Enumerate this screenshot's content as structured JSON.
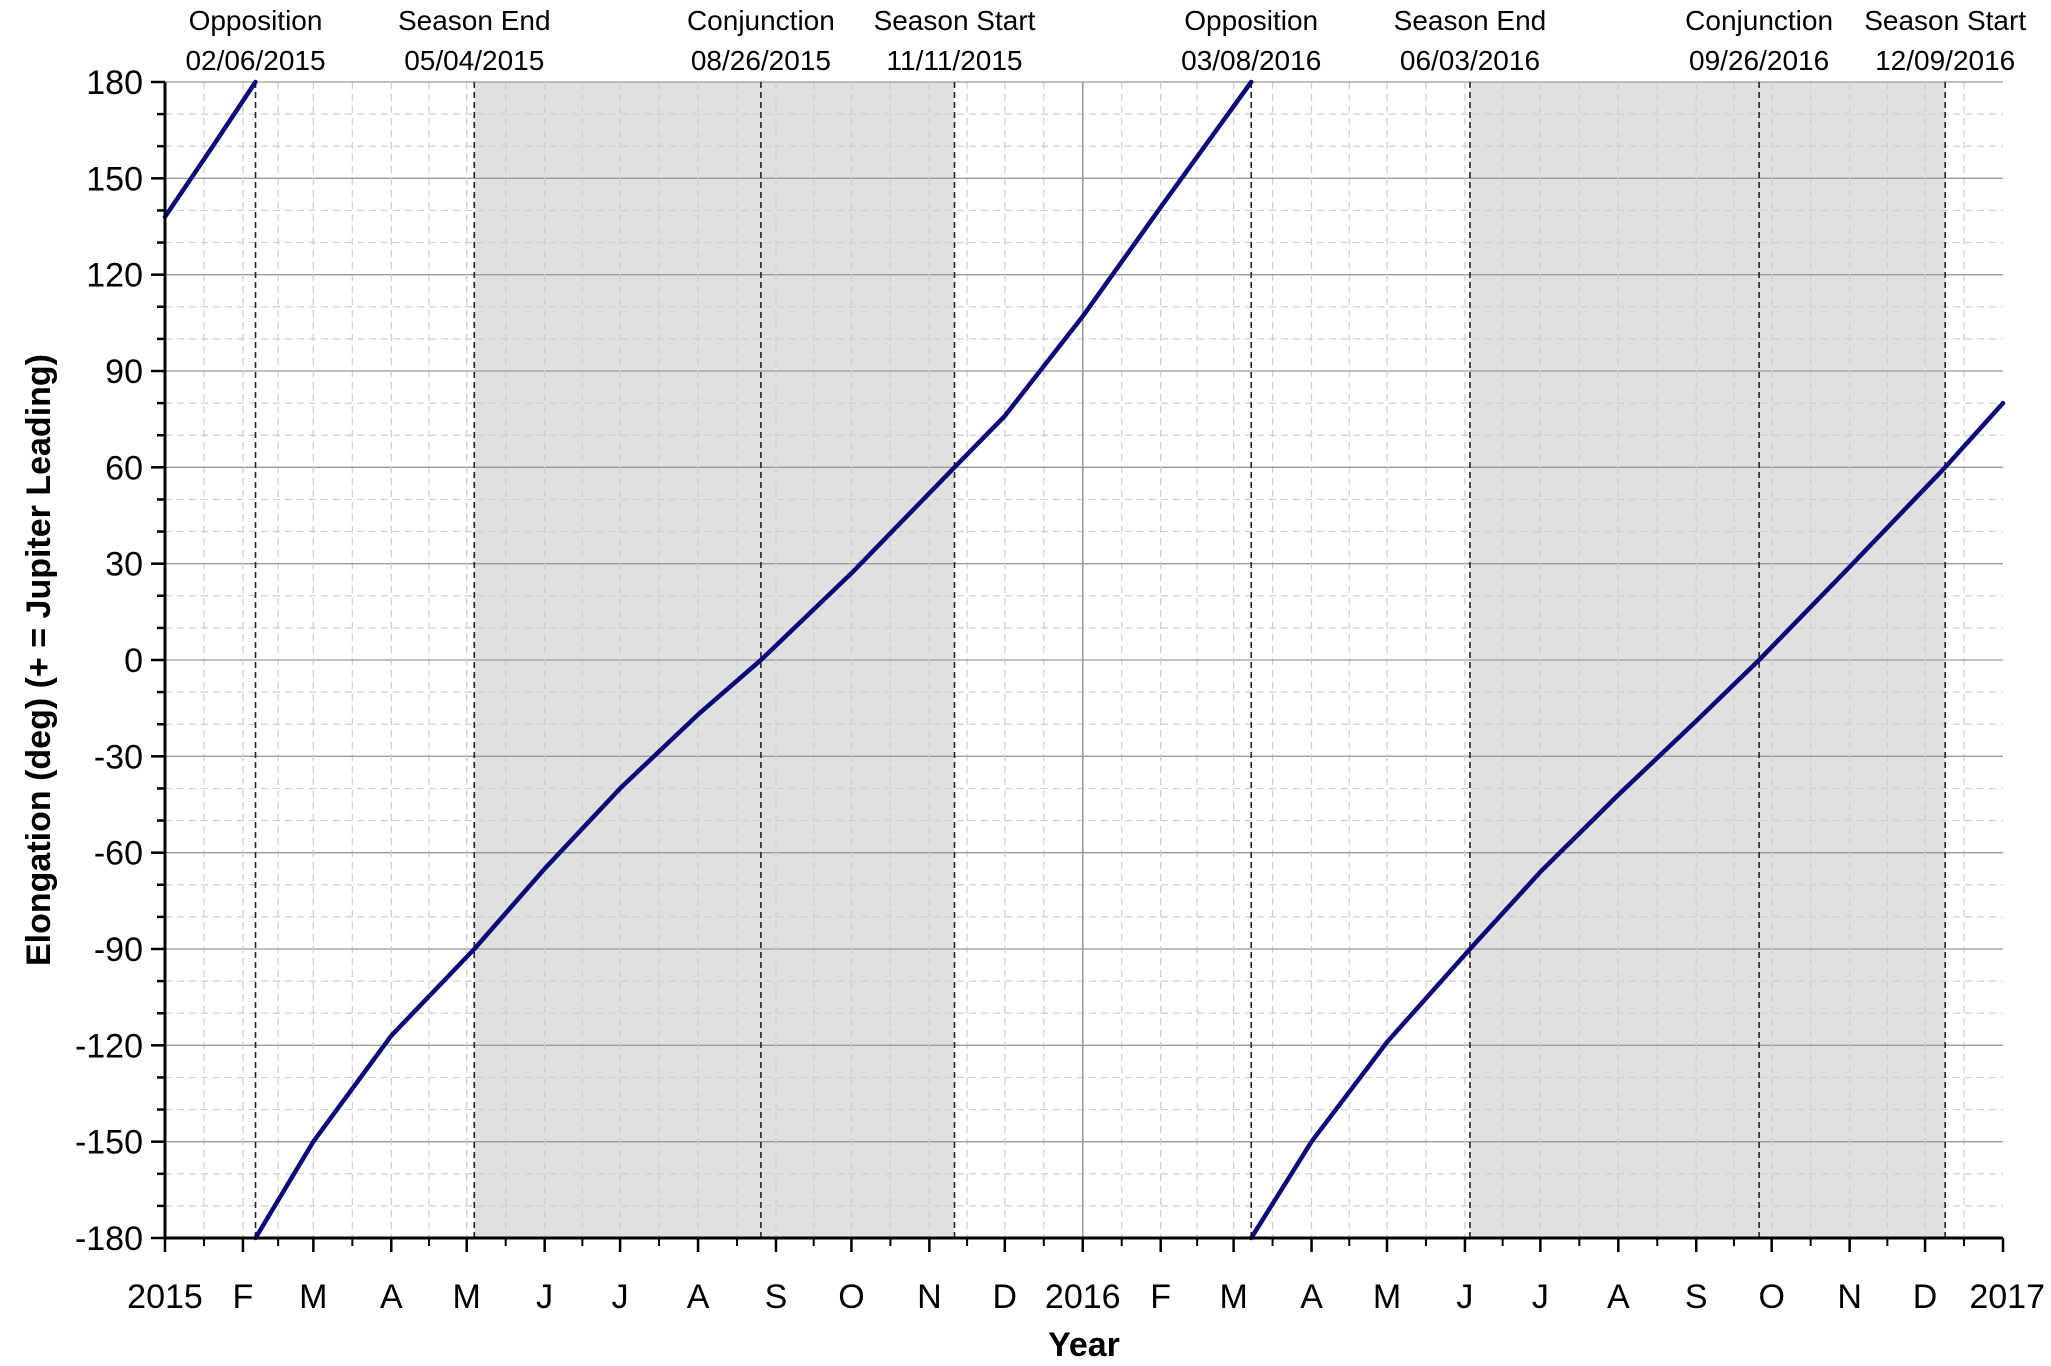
{
  "chart_data": {
    "type": "line",
    "title": "",
    "xlabel": "Year",
    "ylabel": "Elongation (deg) (+ = Jupiter Leading)",
    "xlim": [
      "2015-01-01",
      "2017-01-01"
    ],
    "ylim": [
      -180,
      180
    ],
    "y_ticks": [
      180,
      150,
      120,
      90,
      60,
      30,
      0,
      -30,
      -60,
      -90,
      -120,
      -150,
      -180
    ],
    "y_tick_labels": [
      "180",
      "150",
      "120",
      "90",
      "60",
      "30",
      "0",
      "-30",
      "-60",
      "-90",
      "-120",
      "-150",
      "-180"
    ],
    "x_ticks": [
      {
        "date": "2015-01-01",
        "label": "2015"
      },
      {
        "date": "2015-02-01",
        "label": "F"
      },
      {
        "date": "2015-03-01",
        "label": "M"
      },
      {
        "date": "2015-04-01",
        "label": "A"
      },
      {
        "date": "2015-05-01",
        "label": "M"
      },
      {
        "date": "2015-06-01",
        "label": "J"
      },
      {
        "date": "2015-07-01",
        "label": "J"
      },
      {
        "date": "2015-08-01",
        "label": "A"
      },
      {
        "date": "2015-09-01",
        "label": "S"
      },
      {
        "date": "2015-10-01",
        "label": "O"
      },
      {
        "date": "2015-11-01",
        "label": "N"
      },
      {
        "date": "2015-12-01",
        "label": "D"
      },
      {
        "date": "2016-01-01",
        "label": "2016"
      },
      {
        "date": "2016-02-01",
        "label": "F"
      },
      {
        "date": "2016-03-01",
        "label": "M"
      },
      {
        "date": "2016-04-01",
        "label": "A"
      },
      {
        "date": "2016-05-01",
        "label": "M"
      },
      {
        "date": "2016-06-01",
        "label": "J"
      },
      {
        "date": "2016-07-01",
        "label": "J"
      },
      {
        "date": "2016-08-01",
        "label": "A"
      },
      {
        "date": "2016-09-01",
        "label": "S"
      },
      {
        "date": "2016-10-01",
        "label": "O"
      },
      {
        "date": "2016-11-01",
        "label": "N"
      },
      {
        "date": "2016-12-01",
        "label": "D"
      },
      {
        "date": "2017-01-01",
        "label": "2017"
      }
    ],
    "grid": true,
    "legend": "none",
    "colors": {
      "line": "#0a0a78",
      "shade": "#e0e0e0",
      "grid_major": "#9a9a9a",
      "grid_minor": "#cfcfcf"
    },
    "shaded_spans": [
      {
        "start": "2015-05-04",
        "end": "2015-11-11"
      },
      {
        "start": "2016-06-03",
        "end": "2016-12-09"
      }
    ],
    "events": [
      {
        "name": "Opposition",
        "date_label": "02/06/2015",
        "date": "2015-02-06"
      },
      {
        "name": "Season End",
        "date_label": "05/04/2015",
        "date": "2015-05-04"
      },
      {
        "name": "Conjunction",
        "date_label": "08/26/2015",
        "date": "2015-08-26"
      },
      {
        "name": "Season Start",
        "date_label": "11/11/2015",
        "date": "2015-11-11"
      },
      {
        "name": "Opposition",
        "date_label": "03/08/2016",
        "date": "2016-03-08"
      },
      {
        "name": "Season End",
        "date_label": "06/03/2016",
        "date": "2016-06-03"
      },
      {
        "name": "Conjunction",
        "date_label": "09/26/2016",
        "date": "2016-09-26"
      },
      {
        "name": "Season Start",
        "date_label": "12/09/2016",
        "date": "2016-12-09"
      }
    ],
    "series": [
      {
        "points": [
          {
            "x": "2015-01-01",
            "y": 138
          },
          {
            "x": "2015-01-20",
            "y": 160
          },
          {
            "x": "2015-02-06",
            "y": 180
          }
        ]
      },
      {
        "points": [
          {
            "x": "2015-02-06",
            "y": -180
          },
          {
            "x": "2015-03-01",
            "y": -150
          },
          {
            "x": "2015-04-01",
            "y": -117
          },
          {
            "x": "2015-05-04",
            "y": -90
          },
          {
            "x": "2015-06-01",
            "y": -65
          },
          {
            "x": "2015-07-01",
            "y": -40
          },
          {
            "x": "2015-08-01",
            "y": -17
          },
          {
            "x": "2015-08-26",
            "y": 0
          },
          {
            "x": "2015-10-01",
            "y": 27
          },
          {
            "x": "2015-11-11",
            "y": 60
          },
          {
            "x": "2015-12-01",
            "y": 76
          },
          {
            "x": "2016-01-01",
            "y": 107
          },
          {
            "x": "2016-02-01",
            "y": 141
          },
          {
            "x": "2016-03-08",
            "y": 180
          }
        ]
      },
      {
        "points": [
          {
            "x": "2016-03-08",
            "y": -180
          },
          {
            "x": "2016-04-01",
            "y": -150
          },
          {
            "x": "2016-05-01",
            "y": -119
          },
          {
            "x": "2016-06-03",
            "y": -90
          },
          {
            "x": "2016-07-01",
            "y": -66
          },
          {
            "x": "2016-08-01",
            "y": -42
          },
          {
            "x": "2016-09-01",
            "y": -19
          },
          {
            "x": "2016-09-26",
            "y": 0
          },
          {
            "x": "2016-11-01",
            "y": 29
          },
          {
            "x": "2016-12-09",
            "y": 60
          },
          {
            "x": "2017-01-01",
            "y": 80
          }
        ]
      }
    ]
  }
}
